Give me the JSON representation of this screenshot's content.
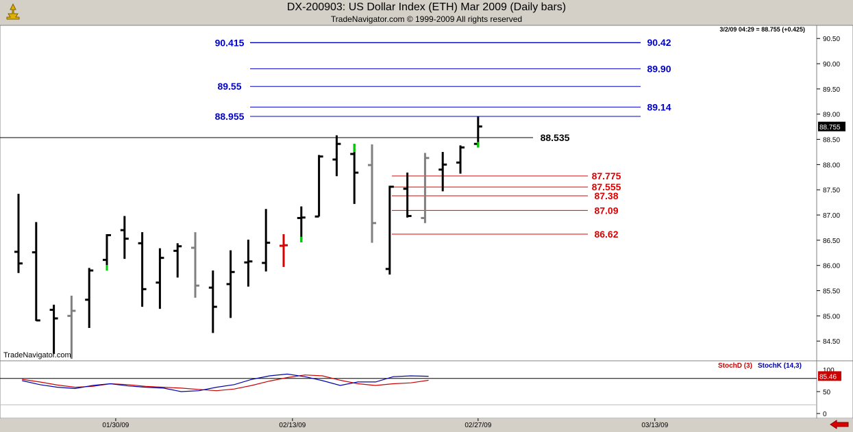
{
  "header": {
    "title": "DX-200903:  US Dollar Index (ETH) Mar 2009  (Daily bars)",
    "subtitle": "TradeNavigator.com © 1999-2009 All rights reserved"
  },
  "quote": "3/2/09 04:29 = 88.755 (+0.425)",
  "watermark": "TradeNavigator.com",
  "colors": {
    "blue_level": "#0000cc",
    "red_level": "#dd0000",
    "up_tick": "#00cc00",
    "gray_bar": "#808080"
  },
  "icons": {
    "logo": "trader-figure-icon",
    "scroll": "red-left-arrow-icon"
  },
  "chart_data": [
    {
      "type": "ohlc",
      "ylim": [
        84.15,
        90.72
      ],
      "yticks": [
        "90.50",
        "90.00",
        "89.50",
        "89.00",
        "88.50",
        "88.00",
        "87.50",
        "87.00",
        "86.50",
        "86.00",
        "85.50",
        "85.00",
        "84.50"
      ],
      "last_price_label": "88.755",
      "xticks": [
        {
          "label": "01/30/09",
          "bar": 5.5
        },
        {
          "label": "02/13/09",
          "bar": 15.5
        },
        {
          "label": "02/27/09",
          "bar": 26
        },
        {
          "label": "03/13/09",
          "bar": 36
        }
      ],
      "bars": [
        {
          "o": 86.27,
          "h": 87.42,
          "l": 85.85,
          "c": 86.04,
          "color": "black"
        },
        {
          "o": 86.26,
          "h": 86.86,
          "l": 84.9,
          "c": 84.91,
          "color": "black"
        },
        {
          "o": 85.12,
          "h": 85.22,
          "l": 84.25,
          "c": 84.95,
          "color": "black"
        },
        {
          "o": 85.0,
          "h": 85.4,
          "l": 84.15,
          "c": 85.1,
          "color": "gray"
        },
        {
          "o": 85.32,
          "h": 85.95,
          "l": 84.76,
          "c": 85.9,
          "color": "black"
        },
        {
          "o": 86.11,
          "h": 86.62,
          "l": 85.9,
          "c": 86.6,
          "color": "black",
          "tick": "green"
        },
        {
          "o": 86.7,
          "h": 86.98,
          "l": 86.13,
          "c": 86.53,
          "color": "black"
        },
        {
          "o": 86.44,
          "h": 86.66,
          "l": 85.18,
          "c": 85.53,
          "color": "black"
        },
        {
          "o": 85.66,
          "h": 86.34,
          "l": 85.14,
          "c": 86.15,
          "color": "black"
        },
        {
          "o": 86.29,
          "h": 86.44,
          "l": 85.76,
          "c": 86.38,
          "color": "black"
        },
        {
          "o": 86.35,
          "h": 86.66,
          "l": 85.36,
          "c": 85.6,
          "color": "gray"
        },
        {
          "o": 85.56,
          "h": 85.9,
          "l": 84.66,
          "c": 85.18,
          "color": "black"
        },
        {
          "o": 85.63,
          "h": 86.3,
          "l": 84.96,
          "c": 85.87,
          "color": "black"
        },
        {
          "o": 86.06,
          "h": 86.51,
          "l": 85.58,
          "c": 86.08,
          "color": "black"
        },
        {
          "o": 86.05,
          "h": 87.12,
          "l": 85.88,
          "c": 86.45,
          "color": "black"
        },
        {
          "o": 86.39,
          "h": 86.62,
          "l": 85.97,
          "c": 86.4,
          "color": "red"
        },
        {
          "o": 86.94,
          "h": 87.17,
          "l": 86.46,
          "c": 86.95,
          "color": "black",
          "tick": "green"
        },
        {
          "o": 86.97,
          "h": 88.19,
          "l": 86.97,
          "c": 88.16,
          "color": "black"
        },
        {
          "o": 88.1,
          "h": 88.58,
          "l": 87.77,
          "c": 88.41,
          "color": "black"
        },
        {
          "o": 88.21,
          "h": 88.41,
          "l": 87.22,
          "c": 87.84,
          "color": "black",
          "tick": "green"
        },
        {
          "o": 87.99,
          "h": 88.4,
          "l": 86.45,
          "c": 86.84,
          "color": "gray"
        },
        {
          "o": 85.93,
          "h": 87.58,
          "l": 85.82,
          "c": 87.56,
          "color": "black"
        },
        {
          "o": 87.52,
          "h": 87.84,
          "l": 86.95,
          "c": 86.98,
          "color": "black"
        },
        {
          "o": 86.94,
          "h": 88.23,
          "l": 86.84,
          "c": 88.13,
          "color": "gray"
        },
        {
          "o": 87.9,
          "h": 88.25,
          "l": 87.47,
          "c": 88.0,
          "color": "black"
        },
        {
          "o": 88.04,
          "h": 88.38,
          "l": 87.82,
          "c": 88.34,
          "color": "black"
        },
        {
          "o": 88.41,
          "h": 88.95,
          "l": 88.34,
          "c": 88.755,
          "color": "black",
          "tick": "green"
        }
      ],
      "levels": [
        {
          "label": "90.415",
          "value": 90.415,
          "color": "blue",
          "side": "left",
          "x0": 27.5,
          "x1": 27.5
        },
        {
          "label": "90.42",
          "value": 90.42,
          "color": "blue",
          "side": "right"
        },
        {
          "label": "89.90",
          "value": 89.9,
          "color": "blue",
          "side": "right"
        },
        {
          "label": "89.55",
          "value": 89.55,
          "color": "blue",
          "side": "left"
        },
        {
          "label": "89.14",
          "value": 89.14,
          "color": "blue",
          "side": "right"
        },
        {
          "label": "88.955",
          "value": 88.955,
          "color": "blue",
          "side": "left"
        },
        {
          "label": "88.535",
          "value": 88.535,
          "color": "black",
          "side": "right"
        },
        {
          "label": "87.775",
          "value": 87.775,
          "color": "red",
          "side": "right"
        },
        {
          "label": "87.555",
          "value": 87.555,
          "color": "red",
          "side": "right"
        },
        {
          "label": "87.38",
          "value": 87.38,
          "color": "red",
          "side": "right"
        },
        {
          "label": "87.09",
          "value": 87.09,
          "color": "red",
          "side": "right"
        },
        {
          "label": "86.62",
          "value": 86.62,
          "color": "red",
          "side": "right"
        }
      ]
    },
    {
      "type": "line",
      "title": "StochD (3)  StochK (14,3)",
      "series": [
        {
          "name": "StochD (3)",
          "color": "#cc0000",
          "values": [
            78,
            72,
            65,
            60,
            62,
            68,
            66,
            62,
            60,
            58,
            55,
            52,
            56,
            64,
            74,
            82,
            88,
            86,
            76,
            68,
            64,
            68,
            70,
            76
          ]
        },
        {
          "name": "StochK (14,3)",
          "color": "#0000aa",
          "values": [
            75,
            66,
            60,
            57,
            64,
            68,
            63,
            60,
            58,
            50,
            52,
            60,
            66,
            78,
            86,
            90,
            84,
            75,
            64,
            72,
            72,
            84,
            86,
            85
          ]
        }
      ],
      "last_value_label": "85.46",
      "top_value_label": "100",
      "yticks": [
        "50",
        "0"
      ],
      "ylim": [
        0,
        100
      ]
    }
  ]
}
